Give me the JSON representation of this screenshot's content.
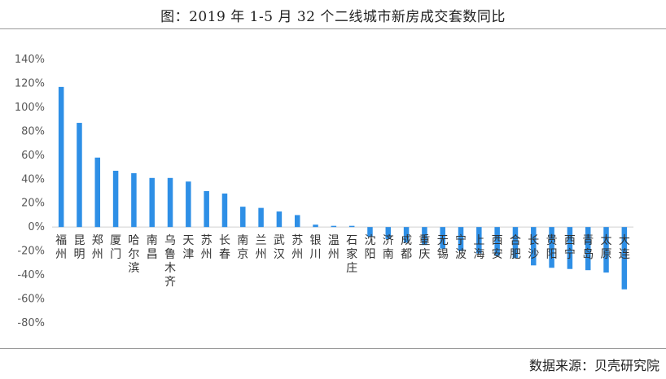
{
  "title": "图：2019 年 1-5 月 32 个二线城市新房成交套数同比",
  "source": "数据来源：贝壳研究院",
  "chart_data": {
    "type": "bar",
    "title": "图：2019 年 1-5 月 32 个二线城市新房成交套数同比",
    "ylim": [
      -80,
      140
    ],
    "yticks": [
      "140%",
      "120%",
      "100%",
      "80%",
      "60%",
      "40%",
      "20%",
      "0%",
      "-20%",
      "-40%",
      "-60%",
      "-80%"
    ],
    "categories": [
      "福州",
      "昆明",
      "郑州",
      "厦门",
      "哈尔滨",
      "南昌",
      "乌鲁木齐",
      "天津",
      "苏州",
      "长春",
      "南京",
      "兰州",
      "武汉",
      "苏州",
      "银川",
      "温州",
      "石家庄",
      "沈阳",
      "济南",
      "成都",
      "重庆",
      "无锡",
      "宁波",
      "上海",
      "西安",
      "合肥",
      "长沙",
      "贵阳",
      "西宁",
      "青岛",
      "太原",
      "大连"
    ],
    "values": [
      117,
      87,
      58,
      47,
      45,
      41,
      41,
      38,
      30,
      28,
      17,
      16,
      13,
      10,
      2,
      1,
      0.5,
      -8,
      -10,
      -13,
      -15,
      -18,
      -20,
      -22,
      -24,
      -26,
      -32,
      -34,
      -35,
      -36,
      -38,
      -52
    ],
    "bar_color": "#2e8fe6",
    "grid": false,
    "legend": "none"
  }
}
